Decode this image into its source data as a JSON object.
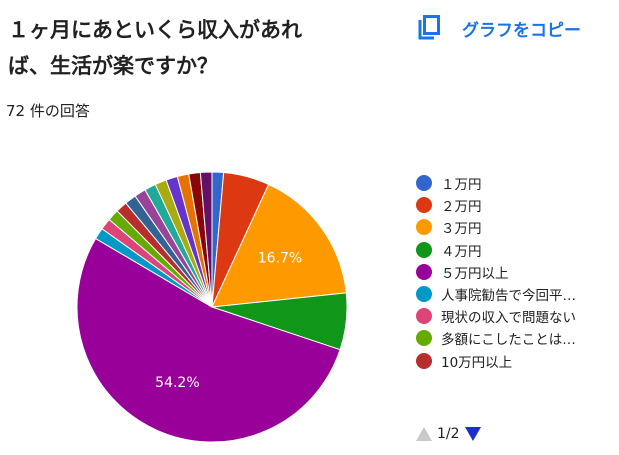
{
  "question": {
    "title_line1": "１ヶ月にあといくら収入があれ",
    "title_line2": "ば、生活が楽ですか？",
    "response_count": "72 件の回答"
  },
  "toolbar": {
    "copy_label": "グラフをコピー",
    "copy_icon": "copy-icon"
  },
  "pager": {
    "text": "1/2"
  },
  "chart_data": {
    "type": "pie",
    "title": "１ヶ月にあといくら収入があれば、生活が楽ですか？",
    "legend_position": "right",
    "slices": [
      {
        "label": "１万円",
        "percent": 1.4,
        "color": "#3366cc"
      },
      {
        "label": "２万円",
        "percent": 5.6,
        "color": "#dc3912"
      },
      {
        "label": "３万円",
        "percent": 16.7,
        "color": "#ff9900",
        "data_label": "16.7%"
      },
      {
        "label": "４万円",
        "percent": 6.9,
        "color": "#109618"
      },
      {
        "label": "５万円以上",
        "percent": 54.2,
        "color": "#990099",
        "data_label": "54.2%"
      },
      {
        "label": "人事院勧告で今回平…",
        "percent": 1.4,
        "color": "#0099c6"
      },
      {
        "label": "現状の収入で問題ない",
        "percent": 1.4,
        "color": "#dd4477"
      },
      {
        "label": "多額にこしたことは…",
        "percent": 1.4,
        "color": "#66aa00"
      },
      {
        "label": "10万円以上",
        "percent": 1.4,
        "color": "#b82e2e"
      },
      {
        "percent": 1.4,
        "color": "#316395"
      },
      {
        "percent": 1.4,
        "color": "#994499"
      },
      {
        "percent": 1.4,
        "color": "#22aa99"
      },
      {
        "percent": 1.4,
        "color": "#aaaa11"
      },
      {
        "percent": 1.4,
        "color": "#6633cc"
      },
      {
        "percent": 1.4,
        "color": "#e67300"
      },
      {
        "percent": 1.4,
        "color": "#8b0707"
      },
      {
        "percent": 1.4,
        "color": "#651067"
      }
    ],
    "legend_visible_count": 9
  }
}
